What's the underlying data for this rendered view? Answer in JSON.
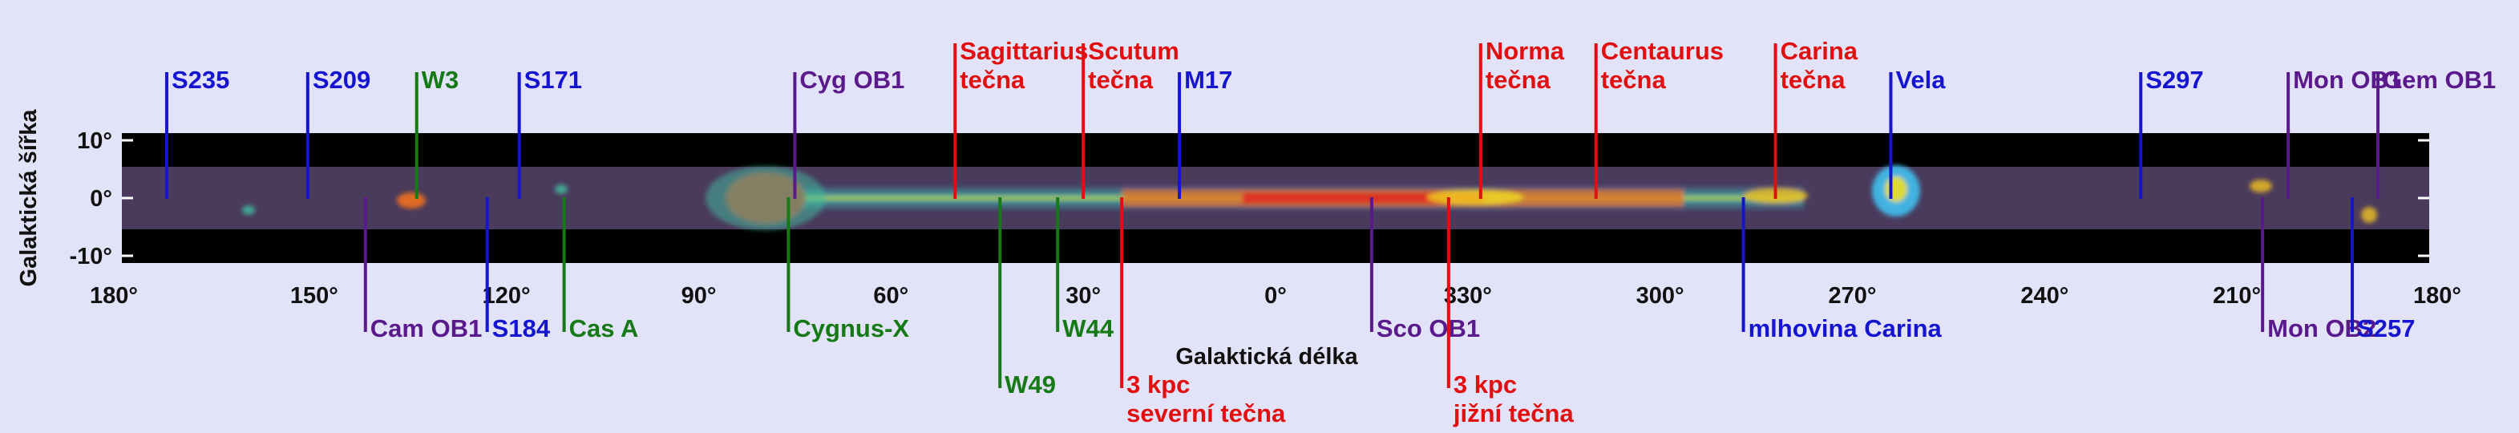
{
  "y_axis": {
    "title": "Galaktická šířka",
    "ticks": [
      {
        "label": "10°",
        "b": 10
      },
      {
        "label": "0°",
        "b": 0
      },
      {
        "label": "-10°",
        "b": -10
      }
    ]
  },
  "x_axis": {
    "title": "Galaktická délka",
    "ticks": [
      {
        "label": "180°",
        "l": 180
      },
      {
        "label": "150°",
        "l": 150
      },
      {
        "label": "120°",
        "l": 120
      },
      {
        "label": "90°",
        "l": 90
      },
      {
        "label": "60°",
        "l": 60
      },
      {
        "label": "30°",
        "l": 30
      },
      {
        "label": "0°",
        "l": 0
      },
      {
        "label": "330°",
        "l": -30
      },
      {
        "label": "300°",
        "l": -60
      },
      {
        "label": "270°",
        "l": -90
      },
      {
        "label": "240°",
        "l": -120
      },
      {
        "label": "210°",
        "l": -150
      },
      {
        "label": "180°",
        "l": -180
      }
    ]
  },
  "colors": {
    "background": "#e2e2f8",
    "blue": "#1515d0",
    "green": "#157a15",
    "red": "#e01010",
    "purple": "#5a1a8c",
    "map_base": "#4a3a5c"
  },
  "labels_above": [
    {
      "lines": [
        "S235"
      ],
      "l": 173,
      "color": "blue"
    },
    {
      "lines": [
        "S209"
      ],
      "l": 151,
      "color": "blue"
    },
    {
      "lines": [
        "W3"
      ],
      "l": 134,
      "color": "green"
    },
    {
      "lines": [
        "S171"
      ],
      "l": 118,
      "color": "blue"
    },
    {
      "lines": [
        "Cyg OB1"
      ],
      "l": 75,
      "color": "purple"
    },
    {
      "lines": [
        "Sagittarius",
        "tečna"
      ],
      "l": 50,
      "color": "red"
    },
    {
      "lines": [
        "Scutum",
        "tečna"
      ],
      "l": 30,
      "color": "red"
    },
    {
      "lines": [
        "M17"
      ],
      "l": 15,
      "color": "blue"
    },
    {
      "lines": [
        "Norma",
        "tečna"
      ],
      "l": -32,
      "color": "red"
    },
    {
      "lines": [
        "Centaurus",
        "tečna"
      ],
      "l": -50,
      "color": "red"
    },
    {
      "lines": [
        "Carina",
        "tečna"
      ],
      "l": -78,
      "color": "red"
    },
    {
      "lines": [
        "Vela"
      ],
      "l": -96,
      "color": "blue"
    },
    {
      "lines": [
        "S297"
      ],
      "l": -135,
      "color": "blue"
    },
    {
      "lines": [
        "Mon OB1"
      ],
      "l": -158,
      "color": "purple"
    },
    {
      "lines": [
        "Gem OB1"
      ],
      "l": -172,
      "color": "purple"
    }
  ],
  "labels_below": [
    {
      "lines": [
        "Cam OB1"
      ],
      "l": 142,
      "color": "purple"
    },
    {
      "lines": [
        "S184"
      ],
      "l": 123,
      "color": "blue"
    },
    {
      "lines": [
        "Cas A"
      ],
      "l": 111,
      "color": "green"
    },
    {
      "lines": [
        "Cygnus-X"
      ],
      "l": 76,
      "color": "green"
    },
    {
      "lines": [
        "W49"
      ],
      "l": 43,
      "color": "green"
    },
    {
      "lines": [
        "W44"
      ],
      "l": 34,
      "color": "green"
    },
    {
      "lines": [
        "3 kpc",
        "severní tečna"
      ],
      "l": 24,
      "color": "red"
    },
    {
      "lines": [
        "Sco OB1"
      ],
      "l": -15,
      "color": "purple"
    },
    {
      "lines": [
        "3 kpc",
        "jižní tečna"
      ],
      "l": -27,
      "color": "red"
    },
    {
      "lines": [
        "mlhovina Carina"
      ],
      "l": -73,
      "color": "blue"
    },
    {
      "lines": [
        "Mon OB2"
      ],
      "l": -154,
      "color": "purple"
    },
    {
      "lines": [
        "S257"
      ],
      "l": -168,
      "color": "blue"
    }
  ]
}
